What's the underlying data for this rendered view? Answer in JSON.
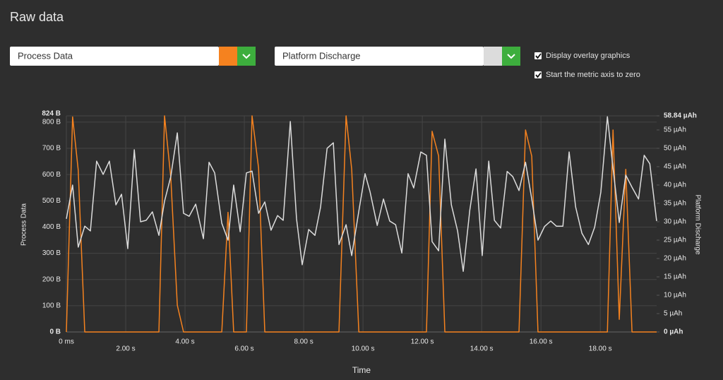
{
  "header": {
    "title": "Raw data"
  },
  "controls": {
    "checkboxes": [
      {
        "label": "Display overlay graphics",
        "checked": true
      },
      {
        "label": "Start the metric axis to zero",
        "checked": true
      }
    ]
  },
  "chart_data": {
    "type": "line",
    "xlabel": "Time",
    "ylabel": "Process Data",
    "y2label": "Platform Discharge",
    "x": [
      0,
      0.21,
      0.4,
      0.62,
      0.81,
      1.02,
      1.24,
      1.45,
      1.67,
      1.86,
      2.07,
      2.29,
      2.5,
      2.69,
      2.9,
      3.12,
      3.31,
      3.52,
      3.74,
      3.95,
      4.14,
      4.36,
      4.62,
      4.81,
      5.0,
      5.24,
      5.45,
      5.64,
      5.86,
      6.07,
      6.26,
      6.48,
      6.69,
      6.9,
      7.12,
      7.31,
      7.55,
      7.76,
      7.95,
      8.17,
      8.38,
      8.57,
      8.79,
      9.0,
      9.19,
      9.43,
      9.62,
      9.86,
      10.07,
      10.24,
      10.48,
      10.69,
      10.9,
      11.1,
      11.31,
      11.52,
      11.71,
      11.95,
      12.14,
      12.33,
      12.55,
      12.76,
      12.98,
      13.19,
      13.38,
      13.6,
      13.81,
      14.02,
      14.24,
      14.43,
      14.64,
      14.86,
      15.05,
      15.26,
      15.48,
      15.69,
      15.9,
      16.12,
      16.33,
      16.52,
      16.74,
      16.95,
      17.17,
      17.38,
      17.6,
      17.81,
      18.02,
      18.24,
      18.43,
      18.64,
      18.86,
      19.07,
      19.29,
      19.48,
      19.67,
      19.9
    ],
    "series": [
      {
        "name": "Process Data",
        "color": "#f5821f",
        "values": [
          0,
          820,
          617,
          0,
          0,
          0,
          0,
          0,
          0,
          0,
          0,
          0,
          0,
          0,
          0,
          0,
          824,
          590,
          102,
          0,
          0,
          0,
          0,
          0,
          0,
          0,
          456,
          0,
          0,
          0,
          824,
          625,
          0,
          0,
          0,
          0,
          0,
          0,
          0,
          0,
          0,
          0,
          0,
          0,
          0,
          824,
          620,
          0,
          0,
          0,
          0,
          0,
          0,
          0,
          0,
          0,
          0,
          0,
          0,
          765,
          671,
          0,
          0,
          0,
          0,
          0,
          0,
          0,
          0,
          0,
          0,
          0,
          0,
          0,
          770,
          670,
          0,
          0,
          0,
          0,
          0,
          0,
          0,
          0,
          0,
          0,
          0,
          0,
          770,
          48,
          620,
          0,
          0,
          0,
          0,
          0
        ]
      },
      {
        "name": "Platform Discharge",
        "color": "#dcdcdc",
        "axis": "y2",
        "values": [
          30.8,
          40.0,
          23.1,
          28.8,
          27.5,
          46.5,
          42.9,
          46.5,
          34.6,
          37.5,
          22.7,
          49.6,
          30.0,
          30.4,
          32.7,
          26.3,
          35.6,
          42.3,
          54.2,
          32.3,
          31.5,
          34.8,
          25.4,
          46.2,
          43.3,
          29.6,
          25.0,
          40.0,
          27.3,
          43.3,
          43.8,
          32.3,
          35.4,
          27.7,
          31.7,
          30.4,
          57.3,
          30.8,
          18.3,
          27.9,
          26.3,
          34.0,
          50.0,
          51.5,
          23.8,
          29.2,
          20.8,
          32.9,
          43.1,
          38.1,
          29.0,
          36.2,
          30.2,
          29.2,
          21.5,
          43.1,
          39.2,
          49.0,
          48.1,
          24.6,
          22.1,
          52.5,
          34.6,
          27.5,
          16.5,
          33.1,
          44.4,
          20.8,
          46.5,
          30.4,
          28.3,
          43.7,
          42.3,
          38.5,
          46.2,
          36.2,
          25.0,
          28.7,
          30.2,
          28.8,
          28.8,
          49.0,
          34.0,
          26.9,
          23.8,
          28.5,
          38.1,
          58.6,
          44.6,
          29.8,
          42.7,
          39.4,
          36.2,
          48.1,
          45.8,
          30.2
        ]
      }
    ],
    "xlim": [
      0,
      19.9
    ],
    "xticks": [
      {
        "value": 0,
        "label": "0 ms"
      },
      {
        "value": 2,
        "label": "2.00 s"
      },
      {
        "value": 4,
        "label": "4.00 s"
      },
      {
        "value": 6,
        "label": "6.00 s"
      },
      {
        "value": 8,
        "label": "8.00 s"
      },
      {
        "value": 10,
        "label": "10.00 s"
      },
      {
        "value": 12,
        "label": "12.00 s"
      },
      {
        "value": 14,
        "label": "14.00 s"
      },
      {
        "value": 16,
        "label": "16.00 s"
      },
      {
        "value": 18,
        "label": "18.00 s"
      }
    ],
    "ylim": [
      0,
      824
    ],
    "yticks": [
      {
        "value": 0,
        "label": "0 B"
      },
      {
        "value": 100,
        "label": "100 B"
      },
      {
        "value": 200,
        "label": "200 B"
      },
      {
        "value": 300,
        "label": "300 B"
      },
      {
        "value": 400,
        "label": "400 B"
      },
      {
        "value": 500,
        "label": "500 B"
      },
      {
        "value": 600,
        "label": "600 B"
      },
      {
        "value": 700,
        "label": "700 B"
      },
      {
        "value": 800,
        "label": "800 B"
      },
      {
        "value": 824,
        "label": "824 B"
      }
    ],
    "y2lim": [
      0,
      58.84
    ],
    "y2ticks": [
      {
        "value": 0,
        "label": "0 µAh"
      },
      {
        "value": 5,
        "label": "5 µAh"
      },
      {
        "value": 10,
        "label": "10 µAh"
      },
      {
        "value": 15,
        "label": "15 µAh"
      },
      {
        "value": 20,
        "label": "20 µAh"
      },
      {
        "value": 25,
        "label": "25 µAh"
      },
      {
        "value": 30,
        "label": "30 µAh"
      },
      {
        "value": 35,
        "label": "35 µAh"
      },
      {
        "value": 40,
        "label": "40 µAh"
      },
      {
        "value": 45,
        "label": "45 µAh"
      },
      {
        "value": 50,
        "label": "50 µAh"
      },
      {
        "value": 55,
        "label": "55 µAh"
      },
      {
        "value": 58.84,
        "label": "58.84 µAh"
      }
    ],
    "grid": true
  }
}
